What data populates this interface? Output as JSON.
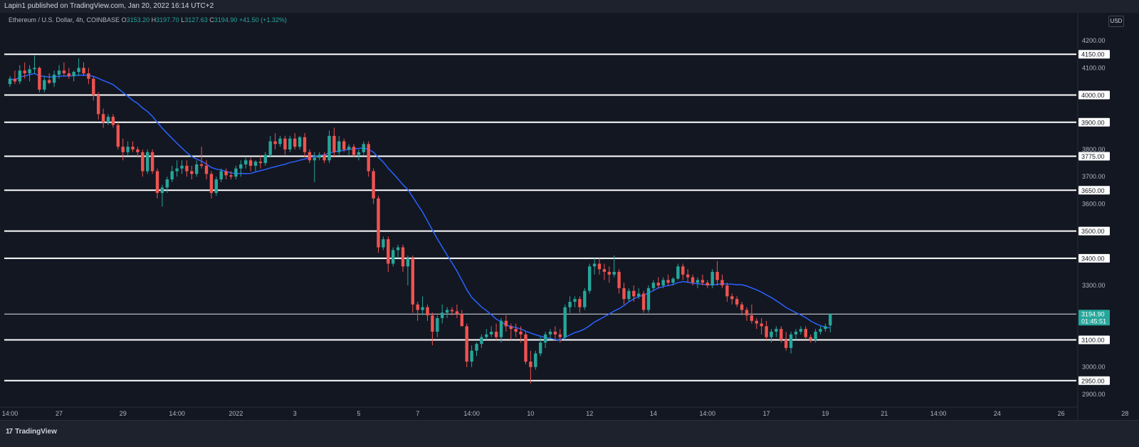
{
  "header": {
    "publisher": "Lapin1 published on TradingView.com, Jan 20, 2022 16:14 UTC+2"
  },
  "legend": {
    "symbol": "Ethereum / U.S. Dollar, 4h, COINBASE",
    "o_label": "O",
    "o_value": "3153.20",
    "h_label": "H",
    "h_value": "3197.70",
    "l_label": "L",
    "l_value": "3127.63",
    "c_label": "C",
    "c_value": "3194.90",
    "change": "+41.50 (+1.32%)"
  },
  "currency_button": "USD",
  "footer": {
    "brand": "TradingView",
    "brand_mark": "17"
  },
  "colors": {
    "background": "#131722",
    "up": "#26a69a",
    "down": "#ef5350",
    "ma": "#2962ff",
    "level_line": "#ffffff",
    "price_tag": "#26a69a"
  },
  "chart_data": {
    "type": "candlestick",
    "timeframe": "4h",
    "ylim": [
      2850,
      4250
    ],
    "yticks": [
      2900,
      3000,
      3100,
      3200,
      3300,
      3400,
      3500,
      3600,
      3700,
      3800,
      3900,
      4000,
      4100,
      4200
    ],
    "levels": [
      4150,
      4000,
      3900,
      3775,
      3650,
      3500,
      3400,
      3194.9,
      3100,
      2950
    ],
    "level_labels": [
      "4150.00",
      "4000.00",
      "3900.00",
      "3775.00",
      "3650.00",
      "3500.00",
      "3400.00",
      "3100.00",
      "2950.00"
    ],
    "ytick_labels": [
      "2900.00",
      "3000.00",
      "3100.00",
      "3200.00",
      "3300.00",
      "3400.00",
      "3500.00",
      "3600.00",
      "3700.00",
      "3800.00",
      "3900.00",
      "4000.00",
      "4100.00",
      "4200.00"
    ],
    "current_price": 3194.9,
    "current_price_label": "3194.90",
    "countdown": "01:45:51",
    "x_labels": [
      {
        "i": 0,
        "label": "14:00"
      },
      {
        "i": 10,
        "label": "27"
      },
      {
        "i": 23,
        "label": "29"
      },
      {
        "i": 34,
        "label": "14:00"
      },
      {
        "i": 46,
        "label": "2022"
      },
      {
        "i": 58,
        "label": "3"
      },
      {
        "i": 71,
        "label": "5"
      },
      {
        "i": 83,
        "label": "7"
      },
      {
        "i": 94,
        "label": "14:00"
      },
      {
        "i": 106,
        "label": "10"
      },
      {
        "i": 118,
        "label": "12"
      },
      {
        "i": 131,
        "label": "14"
      },
      {
        "i": 142,
        "label": "14:00"
      },
      {
        "i": 154,
        "label": "17"
      },
      {
        "i": 166,
        "label": "19"
      },
      {
        "i": 178,
        "label": "21"
      },
      {
        "i": 189,
        "label": "14:00"
      },
      {
        "i": 201,
        "label": "24"
      },
      {
        "i": 214,
        "label": "26"
      },
      {
        "i": 227,
        "label": "28"
      }
    ],
    "ohlc": [
      [
        4040,
        4070,
        4030,
        4060
      ],
      [
        4060,
        4090,
        4040,
        4050
      ],
      [
        4050,
        4110,
        4040,
        4090
      ],
      [
        4090,
        4120,
        4060,
        4080
      ],
      [
        4080,
        4110,
        4050,
        4095
      ],
      [
        4095,
        4145,
        4080,
        4100
      ],
      [
        4100,
        4105,
        4010,
        4020
      ],
      [
        4020,
        4070,
        4010,
        4055
      ],
      [
        4055,
        4080,
        4040,
        4045
      ],
      [
        4045,
        4090,
        4030,
        4075
      ],
      [
        4075,
        4110,
        4060,
        4090
      ],
      [
        4090,
        4120,
        4070,
        4080
      ],
      [
        4080,
        4100,
        4060,
        4070
      ],
      [
        4070,
        4090,
        4050,
        4085
      ],
      [
        4085,
        4135,
        4070,
        4100
      ],
      [
        4100,
        4120,
        4070,
        4080
      ],
      [
        4080,
        4100,
        4040,
        4060
      ],
      [
        4060,
        4070,
        3980,
        4000
      ],
      [
        4000,
        4010,
        3910,
        3930
      ],
      [
        3930,
        3950,
        3880,
        3900
      ],
      [
        3900,
        3930,
        3890,
        3920
      ],
      [
        3920,
        3930,
        3880,
        3890
      ],
      [
        3890,
        3900,
        3800,
        3810
      ],
      [
        3810,
        3840,
        3760,
        3790
      ],
      [
        3790,
        3830,
        3780,
        3810
      ],
      [
        3810,
        3830,
        3790,
        3800
      ],
      [
        3800,
        3810,
        3770,
        3790
      ],
      [
        3790,
        3800,
        3700,
        3720
      ],
      [
        3720,
        3800,
        3710,
        3790
      ],
      [
        3790,
        3800,
        3710,
        3720
      ],
      [
        3720,
        3730,
        3620,
        3640
      ],
      [
        3640,
        3670,
        3590,
        3660
      ],
      [
        3660,
        3700,
        3640,
        3690
      ],
      [
        3690,
        3740,
        3680,
        3720
      ],
      [
        3720,
        3760,
        3700,
        3730
      ],
      [
        3730,
        3760,
        3710,
        3740
      ],
      [
        3740,
        3760,
        3700,
        3720
      ],
      [
        3720,
        3740,
        3690,
        3710
      ],
      [
        3710,
        3760,
        3700,
        3745
      ],
      [
        3745,
        3810,
        3730,
        3740
      ],
      [
        3740,
        3760,
        3690,
        3710
      ],
      [
        3710,
        3720,
        3620,
        3640
      ],
      [
        3640,
        3700,
        3630,
        3690
      ],
      [
        3690,
        3730,
        3680,
        3720
      ],
      [
        3720,
        3730,
        3690,
        3705
      ],
      [
        3705,
        3720,
        3690,
        3700
      ],
      [
        3700,
        3740,
        3690,
        3730
      ],
      [
        3730,
        3760,
        3700,
        3745
      ],
      [
        3745,
        3770,
        3730,
        3760
      ],
      [
        3760,
        3770,
        3720,
        3740
      ],
      [
        3740,
        3760,
        3720,
        3755
      ],
      [
        3755,
        3780,
        3730,
        3750
      ],
      [
        3750,
        3790,
        3740,
        3780
      ],
      [
        3780,
        3850,
        3770,
        3830
      ],
      [
        3830,
        3860,
        3800,
        3820
      ],
      [
        3820,
        3850,
        3810,
        3840
      ],
      [
        3840,
        3850,
        3780,
        3800
      ],
      [
        3800,
        3850,
        3790,
        3840
      ],
      [
        3840,
        3860,
        3800,
        3810
      ],
      [
        3810,
        3850,
        3800,
        3845
      ],
      [
        3845,
        3860,
        3770,
        3790
      ],
      [
        3790,
        3800,
        3750,
        3760
      ],
      [
        3760,
        3790,
        3680,
        3770
      ],
      [
        3770,
        3790,
        3760,
        3780
      ],
      [
        3780,
        3790,
        3750,
        3760
      ],
      [
        3760,
        3870,
        3750,
        3850
      ],
      [
        3850,
        3880,
        3770,
        3790
      ],
      [
        3790,
        3850,
        3780,
        3830
      ],
      [
        3830,
        3840,
        3790,
        3800
      ],
      [
        3800,
        3820,
        3780,
        3810
      ],
      [
        3810,
        3820,
        3770,
        3780
      ],
      [
        3780,
        3800,
        3760,
        3790
      ],
      [
        3790,
        3830,
        3780,
        3820
      ],
      [
        3820,
        3830,
        3700,
        3720
      ],
      [
        3720,
        3730,
        3600,
        3620
      ],
      [
        3620,
        3630,
        3420,
        3440
      ],
      [
        3440,
        3480,
        3430,
        3470
      ],
      [
        3470,
        3480,
        3350,
        3380
      ],
      [
        3380,
        3440,
        3370,
        3430
      ],
      [
        3430,
        3450,
        3400,
        3440
      ],
      [
        3440,
        3450,
        3350,
        3370
      ],
      [
        3370,
        3410,
        3300,
        3400
      ],
      [
        3400,
        3410,
        3200,
        3230
      ],
      [
        3230,
        3240,
        3170,
        3210
      ],
      [
        3210,
        3260,
        3190,
        3220
      ],
      [
        3220,
        3230,
        3170,
        3190
      ],
      [
        3190,
        3200,
        3080,
        3130
      ],
      [
        3130,
        3190,
        3110,
        3180
      ],
      [
        3180,
        3230,
        3160,
        3200
      ],
      [
        3200,
        3220,
        3180,
        3210
      ],
      [
        3210,
        3220,
        3190,
        3205
      ],
      [
        3205,
        3230,
        3180,
        3195
      ],
      [
        3195,
        3210,
        3160,
        3150
      ],
      [
        3150,
        3160,
        3000,
        3020
      ],
      [
        3020,
        3080,
        3000,
        3060
      ],
      [
        3060,
        3090,
        3040,
        3085
      ],
      [
        3085,
        3120,
        3070,
        3110
      ],
      [
        3110,
        3140,
        3100,
        3120
      ],
      [
        3120,
        3150,
        3110,
        3130
      ],
      [
        3130,
        3160,
        3100,
        3110
      ],
      [
        3110,
        3180,
        3090,
        3170
      ],
      [
        3170,
        3190,
        3130,
        3150
      ],
      [
        3150,
        3160,
        3100,
        3140
      ],
      [
        3140,
        3160,
        3110,
        3130
      ],
      [
        3130,
        3150,
        3090,
        3120
      ],
      [
        3120,
        3130,
        3010,
        3020
      ],
      [
        3020,
        3060,
        2940,
        3000
      ],
      [
        3000,
        3060,
        2990,
        3050
      ],
      [
        3050,
        3110,
        3040,
        3090
      ],
      [
        3090,
        3130,
        3070,
        3120
      ],
      [
        3120,
        3140,
        3100,
        3130
      ],
      [
        3130,
        3150,
        3100,
        3120
      ],
      [
        3120,
        3140,
        3090,
        3110
      ],
      [
        3110,
        3230,
        3100,
        3220
      ],
      [
        3220,
        3260,
        3200,
        3240
      ],
      [
        3240,
        3260,
        3220,
        3250
      ],
      [
        3250,
        3260,
        3200,
        3220
      ],
      [
        3220,
        3290,
        3210,
        3280
      ],
      [
        3280,
        3380,
        3270,
        3370
      ],
      [
        3370,
        3400,
        3340,
        3380
      ],
      [
        3380,
        3400,
        3340,
        3360
      ],
      [
        3360,
        3380,
        3320,
        3350
      ],
      [
        3350,
        3370,
        3310,
        3340
      ],
      [
        3340,
        3410,
        3330,
        3350
      ],
      [
        3350,
        3360,
        3270,
        3290
      ],
      [
        3290,
        3310,
        3230,
        3250
      ],
      [
        3250,
        3290,
        3240,
        3280
      ],
      [
        3280,
        3300,
        3240,
        3260
      ],
      [
        3260,
        3290,
        3250,
        3270
      ],
      [
        3270,
        3280,
        3200,
        3210
      ],
      [
        3210,
        3300,
        3200,
        3290
      ],
      [
        3290,
        3320,
        3280,
        3310
      ],
      [
        3310,
        3330,
        3290,
        3300
      ],
      [
        3300,
        3330,
        3290,
        3320
      ],
      [
        3320,
        3340,
        3300,
        3310
      ],
      [
        3310,
        3330,
        3300,
        3325
      ],
      [
        3325,
        3380,
        3320,
        3370
      ],
      [
        3370,
        3380,
        3320,
        3340
      ],
      [
        3340,
        3360,
        3310,
        3330
      ],
      [
        3330,
        3340,
        3300,
        3310
      ],
      [
        3310,
        3330,
        3290,
        3320
      ],
      [
        3320,
        3340,
        3300,
        3310
      ],
      [
        3310,
        3320,
        3290,
        3300
      ],
      [
        3300,
        3360,
        3290,
        3350
      ],
      [
        3350,
        3390,
        3300,
        3320
      ],
      [
        3320,
        3340,
        3290,
        3300
      ],
      [
        3300,
        3310,
        3240,
        3260
      ],
      [
        3260,
        3270,
        3230,
        3250
      ],
      [
        3250,
        3260,
        3220,
        3230
      ],
      [
        3230,
        3240,
        3190,
        3210
      ],
      [
        3210,
        3220,
        3170,
        3190
      ],
      [
        3190,
        3230,
        3160,
        3170
      ],
      [
        3170,
        3180,
        3140,
        3160
      ],
      [
        3160,
        3180,
        3120,
        3150
      ],
      [
        3150,
        3170,
        3100,
        3110
      ],
      [
        3110,
        3140,
        3090,
        3130
      ],
      [
        3130,
        3150,
        3110,
        3140
      ],
      [
        3140,
        3150,
        3090,
        3100
      ],
      [
        3100,
        3130,
        3060,
        3070
      ],
      [
        3070,
        3130,
        3050,
        3120
      ],
      [
        3120,
        3140,
        3100,
        3130
      ],
      [
        3130,
        3150,
        3120,
        3140
      ],
      [
        3140,
        3150,
        3100,
        3110
      ],
      [
        3110,
        3120,
        3090,
        3100
      ],
      [
        3100,
        3140,
        3090,
        3130
      ],
      [
        3130,
        3150,
        3120,
        3140
      ],
      [
        3140,
        3160,
        3130,
        3150
      ],
      [
        3153.2,
        3197.7,
        3127.63,
        3194.9
      ]
    ]
  }
}
